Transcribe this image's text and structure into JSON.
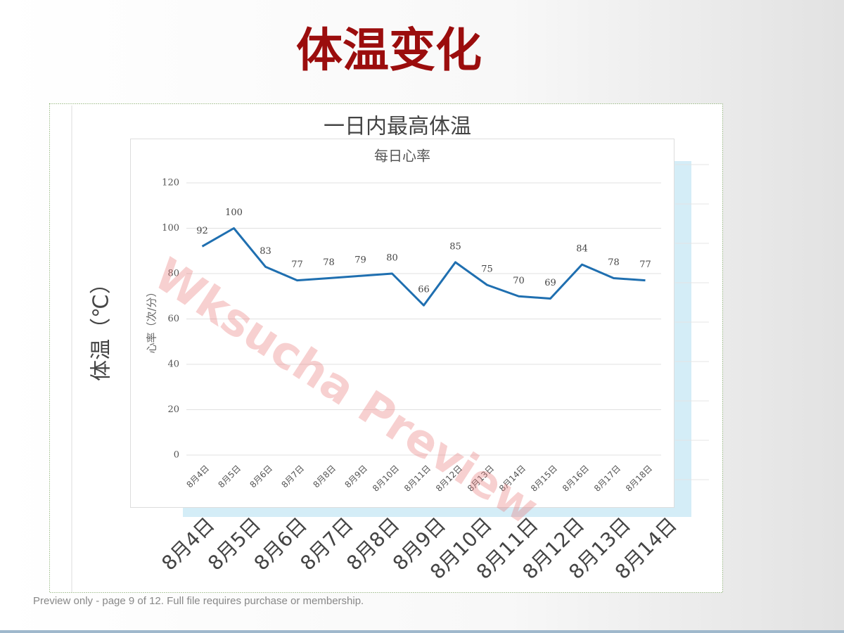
{
  "title": "体温变化",
  "chart_data": [
    {
      "title": "一日内最高体温",
      "y_label": "体温（℃）",
      "categories": [
        "8月4日",
        "8月5日",
        "8月6日",
        "8月7日",
        "8月8日",
        "8月9日",
        "8月10日",
        "8月11日",
        "8月12日",
        "8月13日",
        "8月14日"
      ]
    },
    {
      "type": "line",
      "title": "每日心率",
      "y_label": "心率（次/分）",
      "categories": [
        "8月4日",
        "8月5日",
        "8月6日",
        "8月7日",
        "8月8日",
        "8月9日",
        "8月10日",
        "8月11日",
        "8月12日",
        "8月13日",
        "8月14日",
        "8月15日",
        "8月16日",
        "8月17日",
        "8月18日"
      ],
      "values": [
        92,
        100,
        83,
        77,
        78,
        79,
        80,
        66,
        85,
        75,
        70,
        69,
        84,
        78,
        77
      ],
      "color": "#1f6fb0",
      "ylim": [
        0,
        120
      ],
      "yticks": [
        0,
        20,
        40,
        60,
        80,
        100,
        120
      ],
      "grid": true
    }
  ],
  "watermark": "Wksucha Preview",
  "footer": "Preview only - page 9 of 12. Full file requires purchase or membership."
}
